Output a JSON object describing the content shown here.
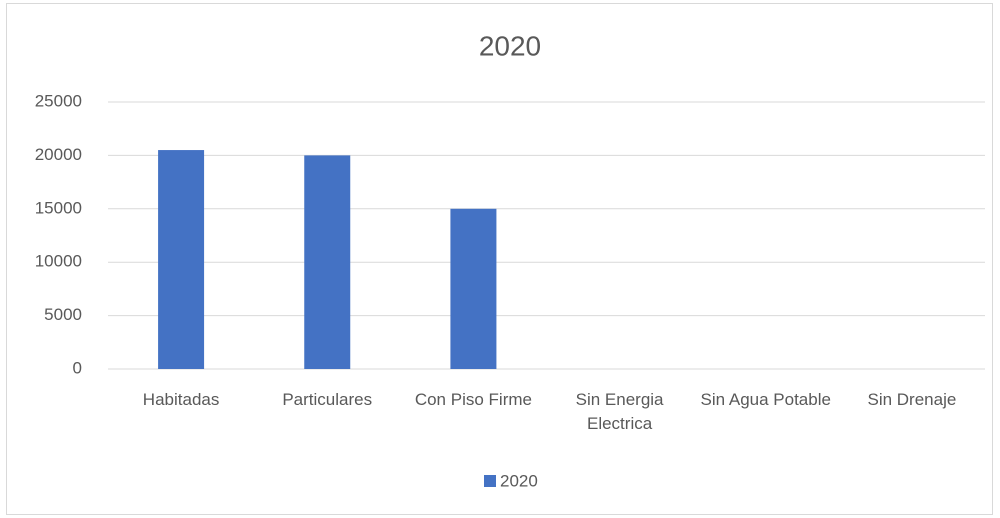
{
  "chart_data": {
    "type": "bar",
    "title": "2020",
    "categories": [
      "Habitadas",
      "Particulares",
      "Con Piso Firme",
      "Sin Energia Electrica",
      "Sin Agua Potable",
      "Sin Drenaje"
    ],
    "series": [
      {
        "name": "2020",
        "color": "#4472c4",
        "values": [
          20500,
          20000,
          15000,
          0,
          0,
          0
        ]
      }
    ],
    "ylim": [
      0,
      25000
    ],
    "yticks": [
      0,
      5000,
      10000,
      15000,
      20000,
      25000
    ],
    "grid": true,
    "legend": "bottom"
  }
}
